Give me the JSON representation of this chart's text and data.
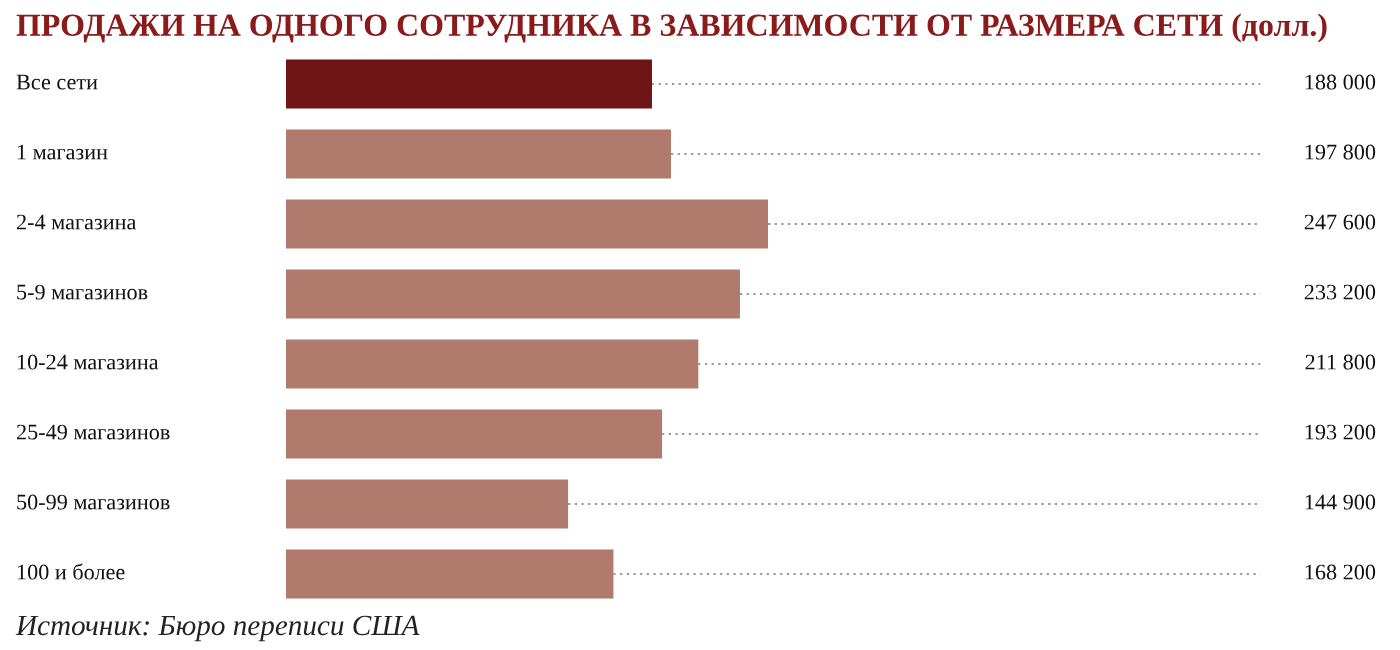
{
  "chart_data": {
    "type": "bar",
    "orientation": "horizontal",
    "title": "ПРОДАЖИ НА ОДНОГО СОТРУДНИКА В ЗАВИСИМОСТИ ОТ РАЗМЕРА СЕТИ (долл.)",
    "categories": [
      "Все сети",
      "1 магазин",
      "2-4 магазина",
      "5-9 магазинов",
      "10-24 магазина",
      "25-49 магазинов",
      "50-99 магазинов",
      "100 и более"
    ],
    "values": [
      188000,
      197800,
      247600,
      233200,
      211800,
      193200,
      144900,
      168200
    ],
    "colors": [
      "#6e1414",
      "#b07a6c",
      "#b07a6c",
      "#b07a6c",
      "#b07a6c",
      "#b07a6c",
      "#b07a6c",
      "#b07a6c"
    ],
    "value_labels": [
      "188 000",
      "197 800",
      "247 600",
      "233 200",
      "211 800",
      "193 200",
      "144 900",
      "168 200"
    ],
    "annotations": [
      "Источник: Бюро переписи США"
    ]
  }
}
